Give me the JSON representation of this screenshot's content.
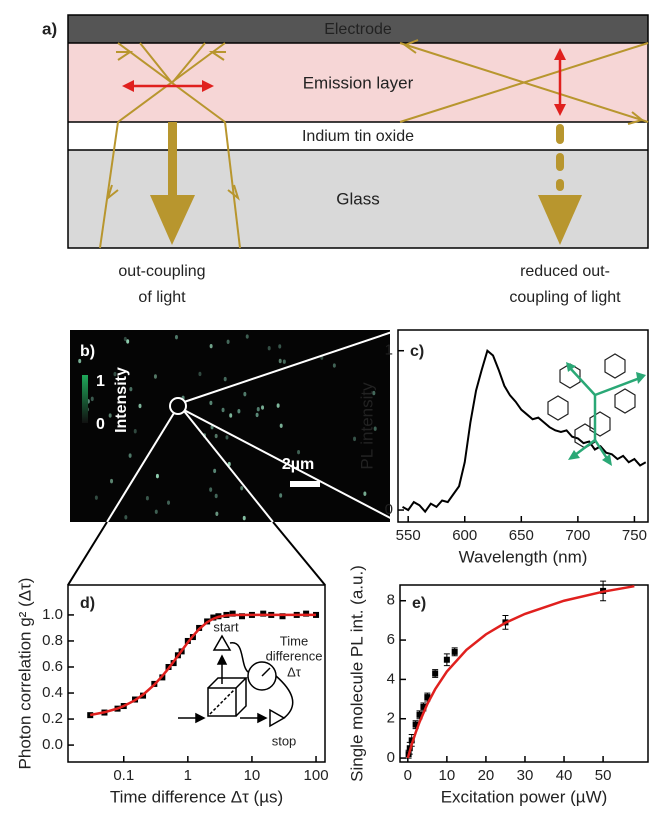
{
  "diagram": {
    "panel_label": "a)",
    "layers": [
      "Electrode",
      "Emission layer",
      "Indium tin oxide",
      "Glass"
    ],
    "captions": [
      [
        "out-coupling",
        "of light"
      ],
      [
        "reduced out-",
        "coupling of light"
      ]
    ]
  },
  "image": {
    "panel_label": "b)",
    "scale_max": "1",
    "scale_min": "0",
    "scale_label": "Intensity",
    "scale_bar": "2µm"
  },
  "chart_data": [
    {
      "type": "line",
      "panel_label": "c)",
      "ylabel": "PL intensity",
      "xlabel": "Wavelength (nm)",
      "xlim": [
        541,
        762
      ],
      "ylim": [
        -0.075,
        1.13
      ],
      "xticks": [
        550,
        600,
        650,
        700,
        750
      ],
      "yticks": [
        0,
        1
      ],
      "series": [
        {
          "color": "#000000",
          "x": [
            545,
            550,
            555,
            560,
            565,
            570,
            575,
            580,
            585,
            590,
            595,
            600,
            605,
            610,
            615,
            620,
            625,
            630,
            635,
            640,
            645,
            650,
            655,
            660,
            665,
            670,
            675,
            680,
            685,
            690,
            695,
            700,
            705,
            710,
            715,
            720,
            725,
            730,
            735,
            740,
            745,
            750,
            755,
            760
          ],
          "values": [
            0.02,
            0.0,
            0.05,
            0.03,
            -0.01,
            0.04,
            0.02,
            0.06,
            0.05,
            0.1,
            0.15,
            0.3,
            0.55,
            0.75,
            0.88,
            1.0,
            0.97,
            0.88,
            0.78,
            0.72,
            0.68,
            0.63,
            0.6,
            0.57,
            0.58,
            0.55,
            0.52,
            0.5,
            0.49,
            0.5,
            0.46,
            0.45,
            0.42,
            0.43,
            0.38,
            0.4,
            0.36,
            0.35,
            0.32,
            0.34,
            0.3,
            0.32,
            0.28,
            0.3
          ]
        }
      ]
    },
    {
      "type": "scatter",
      "panel_label": "d)",
      "ylabel": "Photon correlation g² (Δτ)",
      "xlabel": "Time difference Δτ (µs)",
      "log_x": true,
      "xlim": [
        0.0135,
        138
      ],
      "ylim": [
        -0.13,
        1.23
      ],
      "xticks": [
        0.1,
        1,
        10,
        100
      ],
      "yticks": [
        {
          "value": 0,
          "label": "0.0"
        },
        0.2,
        0.4,
        0.6,
        0.8,
        {
          "value": 1,
          "label": "1.0"
        }
      ],
      "annotations": [
        "start",
        "stop",
        "Time",
        "difference",
        "Δτ"
      ],
      "series": [
        {
          "color": "#000000",
          "x": [
            0.03,
            0.05,
            0.08,
            0.1,
            0.15,
            0.2,
            0.3,
            0.4,
            0.5,
            0.6,
            0.7,
            0.8,
            1,
            1.2,
            1.5,
            2,
            2.5,
            3,
            4,
            5,
            7,
            10,
            15,
            20,
            30,
            50,
            70,
            100
          ],
          "values": [
            0.23,
            0.25,
            0.28,
            0.3,
            0.35,
            0.38,
            0.47,
            0.52,
            0.6,
            0.63,
            0.69,
            0.72,
            0.8,
            0.83,
            0.9,
            0.95,
            0.98,
            0.99,
            1.0,
            1.01,
            0.99,
            1.0,
            1.01,
            1.0,
            0.99,
            1.0,
            1.01,
            1.0
          ]
        },
        {
          "color": "#e0201e",
          "fit": true,
          "x": [
            0.03,
            0.05,
            0.08,
            0.1,
            0.15,
            0.2,
            0.3,
            0.4,
            0.5,
            0.6,
            0.7,
            0.8,
            1,
            1.2,
            1.5,
            2,
            2.5,
            3,
            4,
            5,
            10,
            100
          ],
          "values": [
            0.231,
            0.252,
            0.281,
            0.3,
            0.345,
            0.387,
            0.464,
            0.531,
            0.589,
            0.641,
            0.685,
            0.725,
            0.789,
            0.838,
            0.892,
            0.944,
            0.971,
            0.985,
            0.996,
            0.999,
            1.0,
            1.0
          ]
        }
      ]
    },
    {
      "type": "scatter",
      "panel_label": "e)",
      "ylabel": "Single molecule PL int. (a.u.)",
      "xlabel": "Excitation power (µW)",
      "xlim": [
        -2,
        61.5
      ],
      "ylim": [
        -0.2,
        8.8
      ],
      "xticks": [
        0,
        10,
        20,
        30,
        40,
        50
      ],
      "yticks": [
        0,
        2,
        4,
        6,
        8
      ],
      "series": [
        {
          "color": "#000000",
          "x": [
            0.2,
            0.5,
            1,
            2,
            3,
            4,
            5,
            7,
            10,
            12,
            25,
            50
          ],
          "values": [
            0.2,
            0.5,
            0.9,
            1.7,
            2.2,
            2.6,
            3.1,
            4.3,
            5.0,
            5.4,
            6.9,
            8.5
          ],
          "errors": [
            0.2,
            0.3,
            0.3,
            0.2,
            0.2,
            0.2,
            0.2,
            0.2,
            0.3,
            0.2,
            0.35,
            0.5
          ]
        },
        {
          "color": "#e0201e",
          "fit": true,
          "x": [
            0,
            1,
            2,
            3,
            5,
            7,
            10,
            15,
            20,
            25,
            30,
            40,
            50,
            58
          ],
          "values": [
            0,
            0.69,
            1.29,
            1.83,
            2.75,
            3.5,
            4.4,
            5.5,
            6.29,
            6.88,
            7.33,
            8.0,
            8.46,
            8.74
          ]
        }
      ]
    }
  ]
}
